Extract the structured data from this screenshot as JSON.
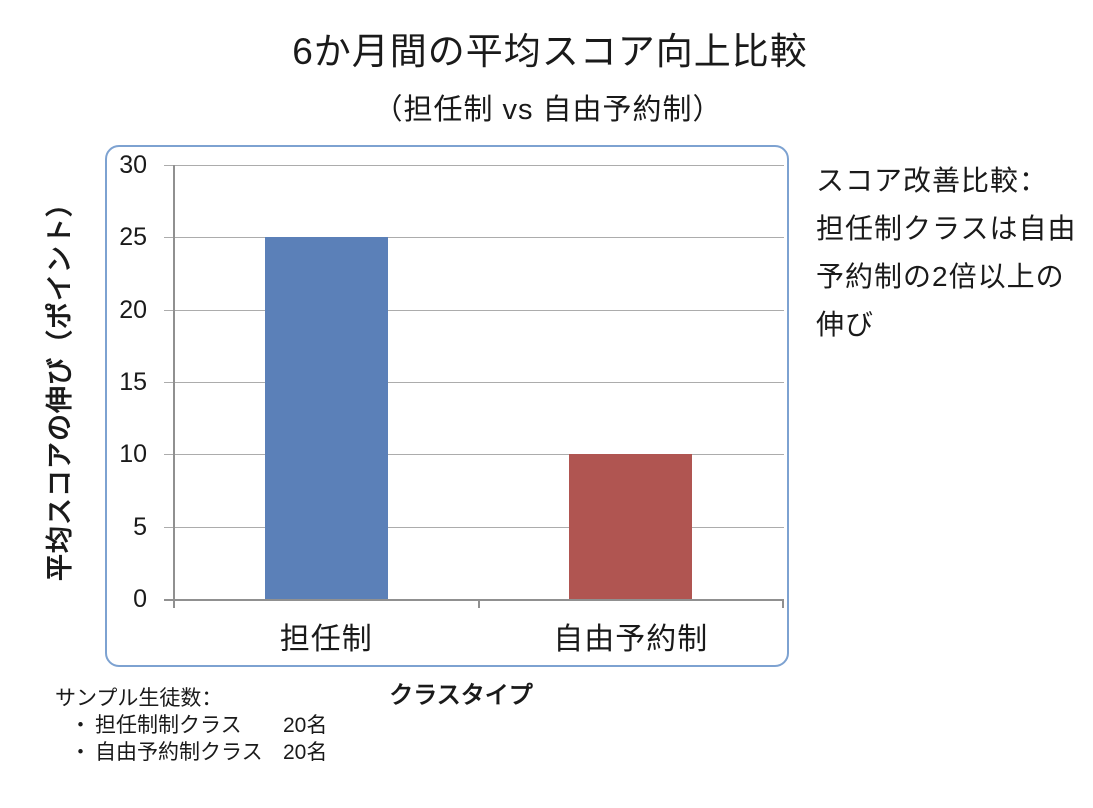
{
  "chart_data": {
    "type": "bar",
    "title": "6か月間の平均スコア向上比較",
    "subtitle": "（担任制 vs 自由予約制）",
    "categories": [
      "担任制",
      "自由予約制"
    ],
    "values": [
      25,
      10
    ],
    "bar_colors": [
      "#5B80B8",
      "#B05551"
    ],
    "xlabel": "クラスタイプ",
    "ylabel": "平均スコアの伸び（ポイント）",
    "ylim": [
      0,
      30
    ],
    "yticks": [
      0,
      5,
      10,
      15,
      20,
      25,
      30
    ],
    "grid": true,
    "gridline_color": "#ACACAC",
    "axis_color": "#909090",
    "plot_border_color": "#7DA2D1",
    "legend": "none"
  },
  "annotation": {
    "lines": [
      "スコア改善比較：",
      "担任制クラスは自由",
      "予約制の2倍以上の",
      "伸び"
    ]
  },
  "sample_note": {
    "header": "サンプル生徒数：",
    "rows": [
      {
        "bullet": "・",
        "label": "担任制制クラス",
        "count": "20名"
      },
      {
        "bullet": "・",
        "label": "自由予約制クラス",
        "count": "20名"
      }
    ]
  }
}
